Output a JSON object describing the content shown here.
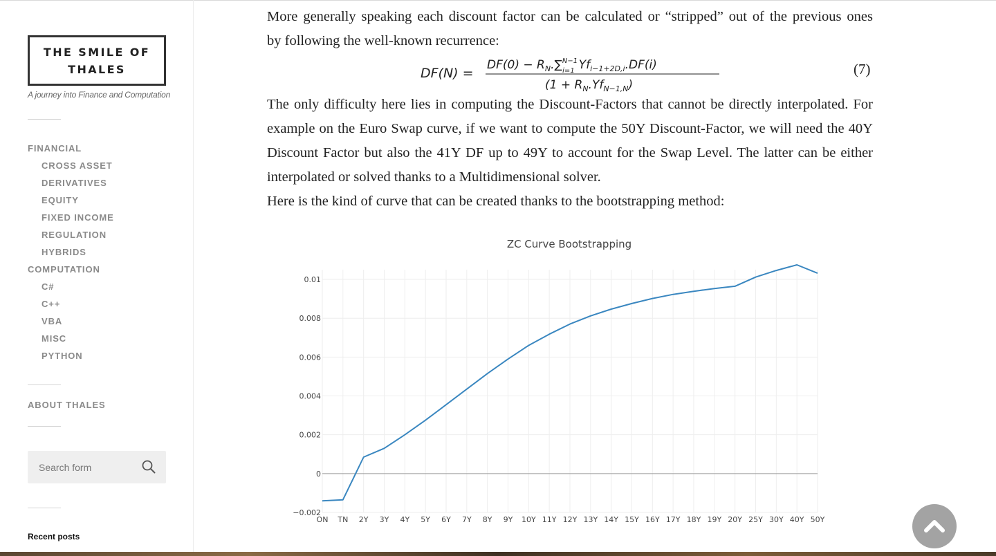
{
  "site": {
    "title": "THE SMILE OF THALES",
    "tagline": "A journey into Finance and Computation"
  },
  "nav": {
    "financial": {
      "label": "FINANCIAL",
      "children": [
        "CROSS ASSET",
        "DERIVATIVES",
        "EQUITY",
        "FIXED INCOME",
        "REGULATION",
        "HYBRIDS"
      ]
    },
    "computation": {
      "label": "COMPUTATION",
      "children": [
        "C#",
        "C++",
        "VBA",
        "MISC",
        "PYTHON"
      ]
    },
    "about": "ABOUT THALES"
  },
  "search": {
    "placeholder": "Search form"
  },
  "recent_posts": "Recent posts",
  "article": {
    "p1_line1": "More generally speaking each discount factor can be calculated or “stripped” out of the previous ones",
    "p1_line2": "by following the well-known recurrence:",
    "equation_number": "(7)",
    "p2": "The only difficulty here lies in computing the Discount-Factors that cannot be directly interpolated. For example on the Euro Swap curve, if we want to compute the 50Y Discount-Factor, we will need the 40Y Discount Factor but also the 41Y DF up to 49Y to account for the Swap Level. The latter can be either interpolated or solved thanks to a Multidimensional solver.",
    "p3": "Here is the kind of curve that can be created thanks to the bootstrapping method:"
  },
  "chart_data": {
    "type": "line",
    "title": "ZC Curve Bootstrapping",
    "x": [
      "ON",
      "TN",
      "2Y",
      "3Y",
      "4Y",
      "5Y",
      "6Y",
      "7Y",
      "8Y",
      "9Y",
      "10Y",
      "11Y",
      "12Y",
      "13Y",
      "14Y",
      "15Y",
      "16Y",
      "17Y",
      "18Y",
      "19Y",
      "20Y",
      "25Y",
      "30Y",
      "40Y",
      "50Y"
    ],
    "series": [
      {
        "values": [
          -0.0014,
          -0.00135,
          0.00085,
          0.0013,
          0.002,
          0.00275,
          0.00355,
          0.00435,
          0.00515,
          0.0059,
          0.0066,
          0.00718,
          0.0077,
          0.00812,
          0.00847,
          0.00876,
          0.00902,
          0.00923,
          0.00939,
          0.00953,
          0.00965,
          0.01012,
          0.01046,
          0.01075,
          0.01032
        ],
        "color": "#3a87c0"
      }
    ],
    "ylim": [
      -0.002,
      0.0105
    ],
    "yticks": [
      -0.002,
      0,
      0.002,
      0.004,
      0.006,
      0.008,
      0.01
    ],
    "ytick_labels": [
      "−0.002",
      "0",
      "0.002",
      "0.004",
      "0.006",
      "0.008",
      "0.01"
    ],
    "grid": true
  },
  "icons": {
    "search": "search-icon",
    "back_to_top": "chevron-up-icon"
  }
}
